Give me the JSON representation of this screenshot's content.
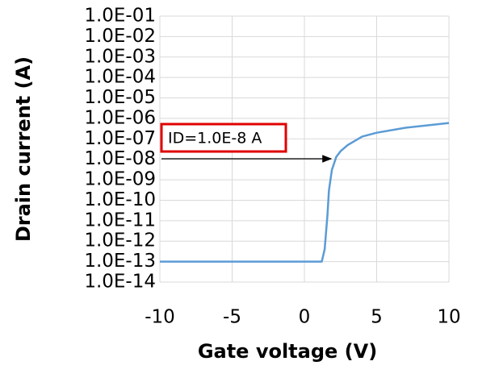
{
  "chart_data": {
    "type": "line",
    "y_label": "Drain current (A)",
    "x_label": "Gate voltage (V)",
    "annotation": "ID=1.0E-8 A",
    "x": [
      -10,
      1.2,
      1.4,
      1.6,
      1.7,
      1.9,
      2.2,
      2.5,
      3,
      4,
      5,
      7,
      10
    ],
    "values": [
      1e-13,
      1e-13,
      4e-13,
      2e-11,
      3e-10,
      3e-09,
      1.3e-08,
      2.5e-08,
      5e-08,
      1.3e-07,
      2e-07,
      3.5e-07,
      6e-07
    ],
    "color": "#5b9bd5",
    "xlim": [
      -10,
      10
    ],
    "xticks": [
      -10,
      -5,
      0,
      5,
      10
    ],
    "ylim": [
      1e-14,
      0.1
    ],
    "log_y": true,
    "yticks": [
      {
        "value": 1e-14,
        "label": "1.0E-14"
      },
      {
        "value": 1e-13,
        "label": "1.0E-13"
      },
      {
        "value": 1e-12,
        "label": "1.0E-12"
      },
      {
        "value": 1e-11,
        "label": "1.0E-11"
      },
      {
        "value": 1e-10,
        "label": "1.0E-10"
      },
      {
        "value": 1e-09,
        "label": "1.0E-09"
      },
      {
        "value": 1e-08,
        "label": "1.0E-08"
      },
      {
        "value": 1e-07,
        "label": "1.0E-07"
      },
      {
        "value": 1e-06,
        "label": "1.0E-06"
      },
      {
        "value": 1e-05,
        "label": "1.0E-05"
      },
      {
        "value": 0.0001,
        "label": "1.0E-04"
      },
      {
        "value": 0.001,
        "label": "1.0E-03"
      },
      {
        "value": 0.01,
        "label": "1.0E-02"
      },
      {
        "value": 0.1,
        "label": "1.0E-01"
      }
    ],
    "grid": true
  }
}
